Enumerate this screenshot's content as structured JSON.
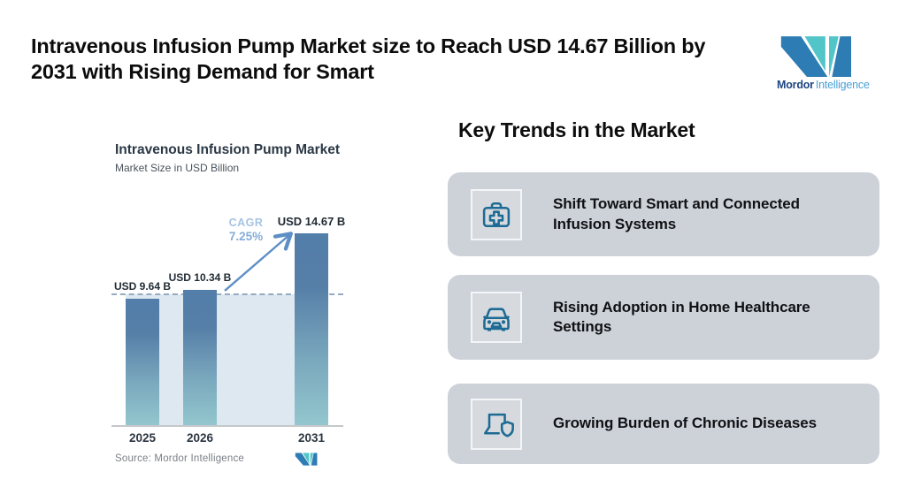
{
  "header": {
    "title_lines": [
      "Intravenous Infusion Pump Market size to Reach USD 14.67 Billion by",
      "2031 with Rising Demand for Smart"
    ],
    "logo": {
      "name_bold": "Mordor",
      "name_light": "Intelligence"
    }
  },
  "chart_data": {
    "type": "bar",
    "title": "Intravenous Infusion Pump Market",
    "subtitle": "Market Size in USD Billion",
    "unit": "USD Billion",
    "categories": [
      "2025",
      "2026",
      "2031"
    ],
    "values": [
      9.64,
      10.34,
      14.67
    ],
    "bar_labels": [
      "USD 9.64 B",
      "USD 10.34 B",
      "USD 14.67 B"
    ],
    "cagr_label": "CAGR",
    "cagr": "7.25%",
    "baseline_marker_value": 9.64,
    "source": "Source: Mordor Intelligence",
    "ylim": [
      0,
      16
    ],
    "grid": false,
    "colors": {
      "bar_top": "#527ea9",
      "bar_bottom": "#93c6ce",
      "band": "#dde8f1",
      "dashed_line": "#95abc0",
      "arrow": "#5d8ec6",
      "cagr_text": "#83add7"
    }
  },
  "trends": {
    "heading": "Key Trends in the Market",
    "cards": [
      {
        "icon": "first-aid-kit-icon",
        "text": "Shift Toward Smart and Connected Infusion Systems"
      },
      {
        "icon": "car-icon",
        "text": "Rising Adoption in Home Healthcare Settings"
      },
      {
        "icon": "laptop-shield-icon",
        "text": "Growing Burden of Chronic Diseases"
      }
    ]
  },
  "brand_colors": {
    "logo_blue": "#2e7cb4",
    "logo_teal": "#52c5c9",
    "logo_text_dark": "#1e4480",
    "logo_text_light": "#49a0d5",
    "card_background": "#cdd2d9",
    "icon_stroke": "#1d6b94"
  }
}
